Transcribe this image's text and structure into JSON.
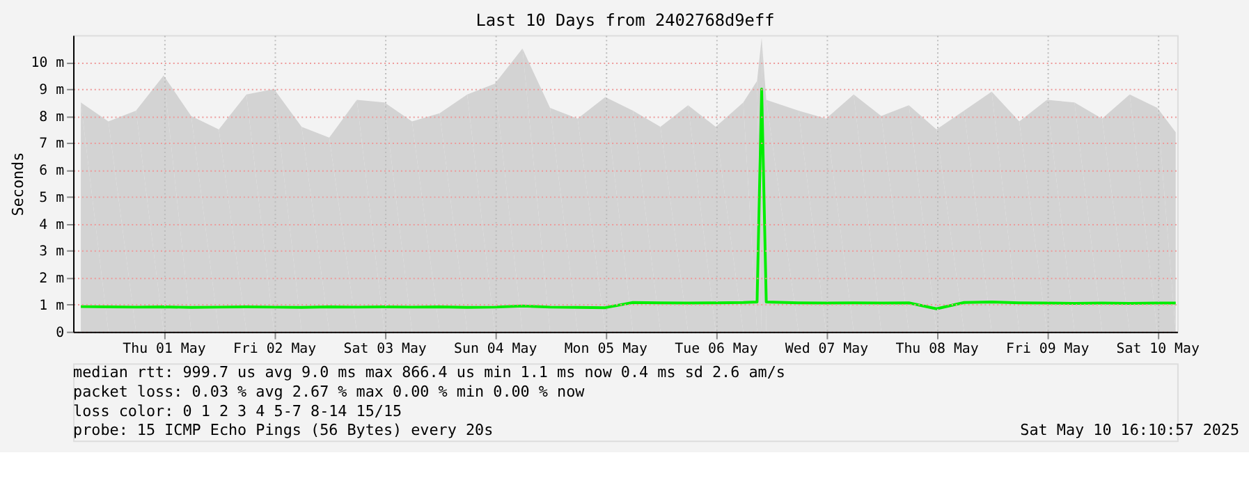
{
  "chart_data": {
    "type": "line",
    "title": "Last 10 Days from 2402768d9eff",
    "ylabel": "Seconds",
    "x": [
      "2025-04-30T18:00",
      "2025-05-01T00:00",
      "2025-05-01T06:00",
      "2025-05-01T12:00",
      "2025-05-01T18:00",
      "2025-05-02T00:00",
      "2025-05-02T06:00",
      "2025-05-02T12:00",
      "2025-05-02T18:00",
      "2025-05-03T00:00",
      "2025-05-03T06:00",
      "2025-05-03T12:00",
      "2025-05-03T18:00",
      "2025-05-04T00:00",
      "2025-05-04T06:00",
      "2025-05-04T12:00",
      "2025-05-04T18:00",
      "2025-05-05T00:00",
      "2025-05-05T06:00",
      "2025-05-05T12:00",
      "2025-05-05T18:00",
      "2025-05-06T00:00",
      "2025-05-06T06:00",
      "2025-05-06T12:00",
      "2025-05-06T18:00",
      "2025-05-06T21:00",
      "2025-05-06T22:00",
      "2025-05-06T23:00",
      "2025-05-07T06:00",
      "2025-05-07T12:00",
      "2025-05-07T18:00",
      "2025-05-08T00:00",
      "2025-05-08T06:00",
      "2025-05-08T12:00",
      "2025-05-08T18:00",
      "2025-05-09T00:00",
      "2025-05-09T06:00",
      "2025-05-09T12:00",
      "2025-05-09T18:00",
      "2025-05-10T00:00",
      "2025-05-10T06:00",
      "2025-05-10T12:00",
      "2025-05-10T16:00"
    ],
    "series": [
      {
        "type": "area",
        "color": "#d3d3d3",
        "values": [
          8.5,
          7.8,
          8.2,
          9.5,
          8.0,
          7.5,
          8.8,
          9.0,
          7.6,
          7.2,
          8.6,
          8.5,
          7.8,
          8.1,
          8.8,
          9.2,
          10.5,
          8.3,
          7.9,
          8.7,
          8.2,
          7.6,
          8.4,
          7.6,
          8.5,
          9.3,
          10.9,
          8.6,
          8.2,
          7.9,
          8.8,
          8.0,
          8.4,
          7.5,
          8.2,
          8.9,
          7.8,
          8.6,
          8.5,
          7.9,
          8.8,
          8.3,
          7.4
        ]
      },
      {
        "color": "#00ee00",
        "values": [
          0.93,
          0.92,
          0.91,
          0.92,
          0.9,
          0.91,
          0.92,
          0.91,
          0.9,
          0.92,
          0.91,
          0.92,
          0.91,
          0.92,
          0.9,
          0.91,
          0.95,
          0.91,
          0.9,
          0.89,
          1.08,
          1.07,
          1.06,
          1.07,
          1.08,
          1.1,
          9.0,
          1.1,
          1.07,
          1.06,
          1.07,
          1.06,
          1.07,
          0.85,
          1.08,
          1.1,
          1.07,
          1.06,
          1.05,
          1.06,
          1.05,
          1.06,
          1.06
        ]
      }
    ],
    "xlim": [
      "2025-04-30T16:20",
      "2025-05-10T16:20"
    ],
    "xticks": [
      {
        "value": "2025-05-01T12:00",
        "label": "Thu 01 May"
      },
      {
        "value": "2025-05-02T12:00",
        "label": "Fri 02 May"
      },
      {
        "value": "2025-05-03T12:00",
        "label": "Sat 03 May"
      },
      {
        "value": "2025-05-04T12:00",
        "label": "Sun 04 May"
      },
      {
        "value": "2025-05-05T12:00",
        "label": "Mon 05 May"
      },
      {
        "value": "2025-05-06T12:00",
        "label": "Tue 06 May"
      },
      {
        "value": "2025-05-07T12:00",
        "label": "Wed 07 May"
      },
      {
        "value": "2025-05-08T12:00",
        "label": "Thu 08 May"
      },
      {
        "value": "2025-05-09T12:00",
        "label": "Fri 09 May"
      },
      {
        "value": "2025-05-10T12:00",
        "label": "Sat 10 May"
      }
    ],
    "ylim": [
      0,
      11
    ],
    "yticks": [
      0,
      {
        "value": 1,
        "label": "1 m"
      },
      {
        "value": 2,
        "label": "2 m"
      },
      {
        "value": 3,
        "label": "3 m"
      },
      {
        "value": 4,
        "label": "4 m"
      },
      {
        "value": 5,
        "label": "5 m"
      },
      {
        "value": 6,
        "label": "6 m"
      },
      {
        "value": 7,
        "label": "7 m"
      },
      {
        "value": 8,
        "label": "8 m"
      },
      {
        "value": 9,
        "label": "9 m"
      },
      {
        "value": 10,
        "label": "10 m"
      }
    ],
    "grid": true,
    "annotations": [
      "median rtt:  999.7 us avg  9.0 ms max  866.4 us min  1.1 ms now  0.4 ms sd  2.6   am/s",
      "packet loss: 0.03 % avg  2.67 % max  0.00 % min  0.00 % now",
      "loss color:  0  1  2  3  4  5-7  8-14  15/15",
      "probe:       15 ICMP Echo Pings (56 Bytes) every 20s",
      "Sat May 10 16:10:57 2025"
    ]
  }
}
